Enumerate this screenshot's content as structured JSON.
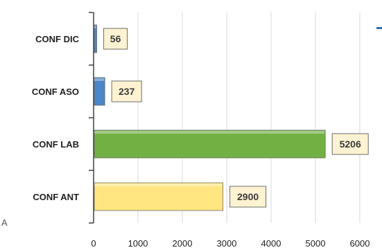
{
  "corner_text": "A",
  "chart_data": {
    "type": "bar",
    "orientation": "horizontal",
    "title": "",
    "xlabel": "",
    "ylabel": "",
    "categories": [
      "CONF DIC",
      "CONF ASO",
      "CONF LAB",
      "CONF ANT"
    ],
    "values": [
      56,
      237,
      5206,
      2900
    ],
    "data_labels": [
      "56",
      "237",
      "5206",
      "2900"
    ],
    "colors": [
      "#4a86c8",
      "#4a86c8",
      "#72b043",
      "#ffe680"
    ],
    "label_box_color": "#fdf3d2",
    "xlim": [
      0,
      6000
    ],
    "xticks": [
      0,
      1000,
      2000,
      3000,
      4000,
      5000,
      6000
    ],
    "xtick_labels": [
      "0",
      "1000",
      "2000",
      "3000",
      "4000",
      "5000",
      "6000"
    ],
    "grid": true,
    "legend": "none"
  }
}
